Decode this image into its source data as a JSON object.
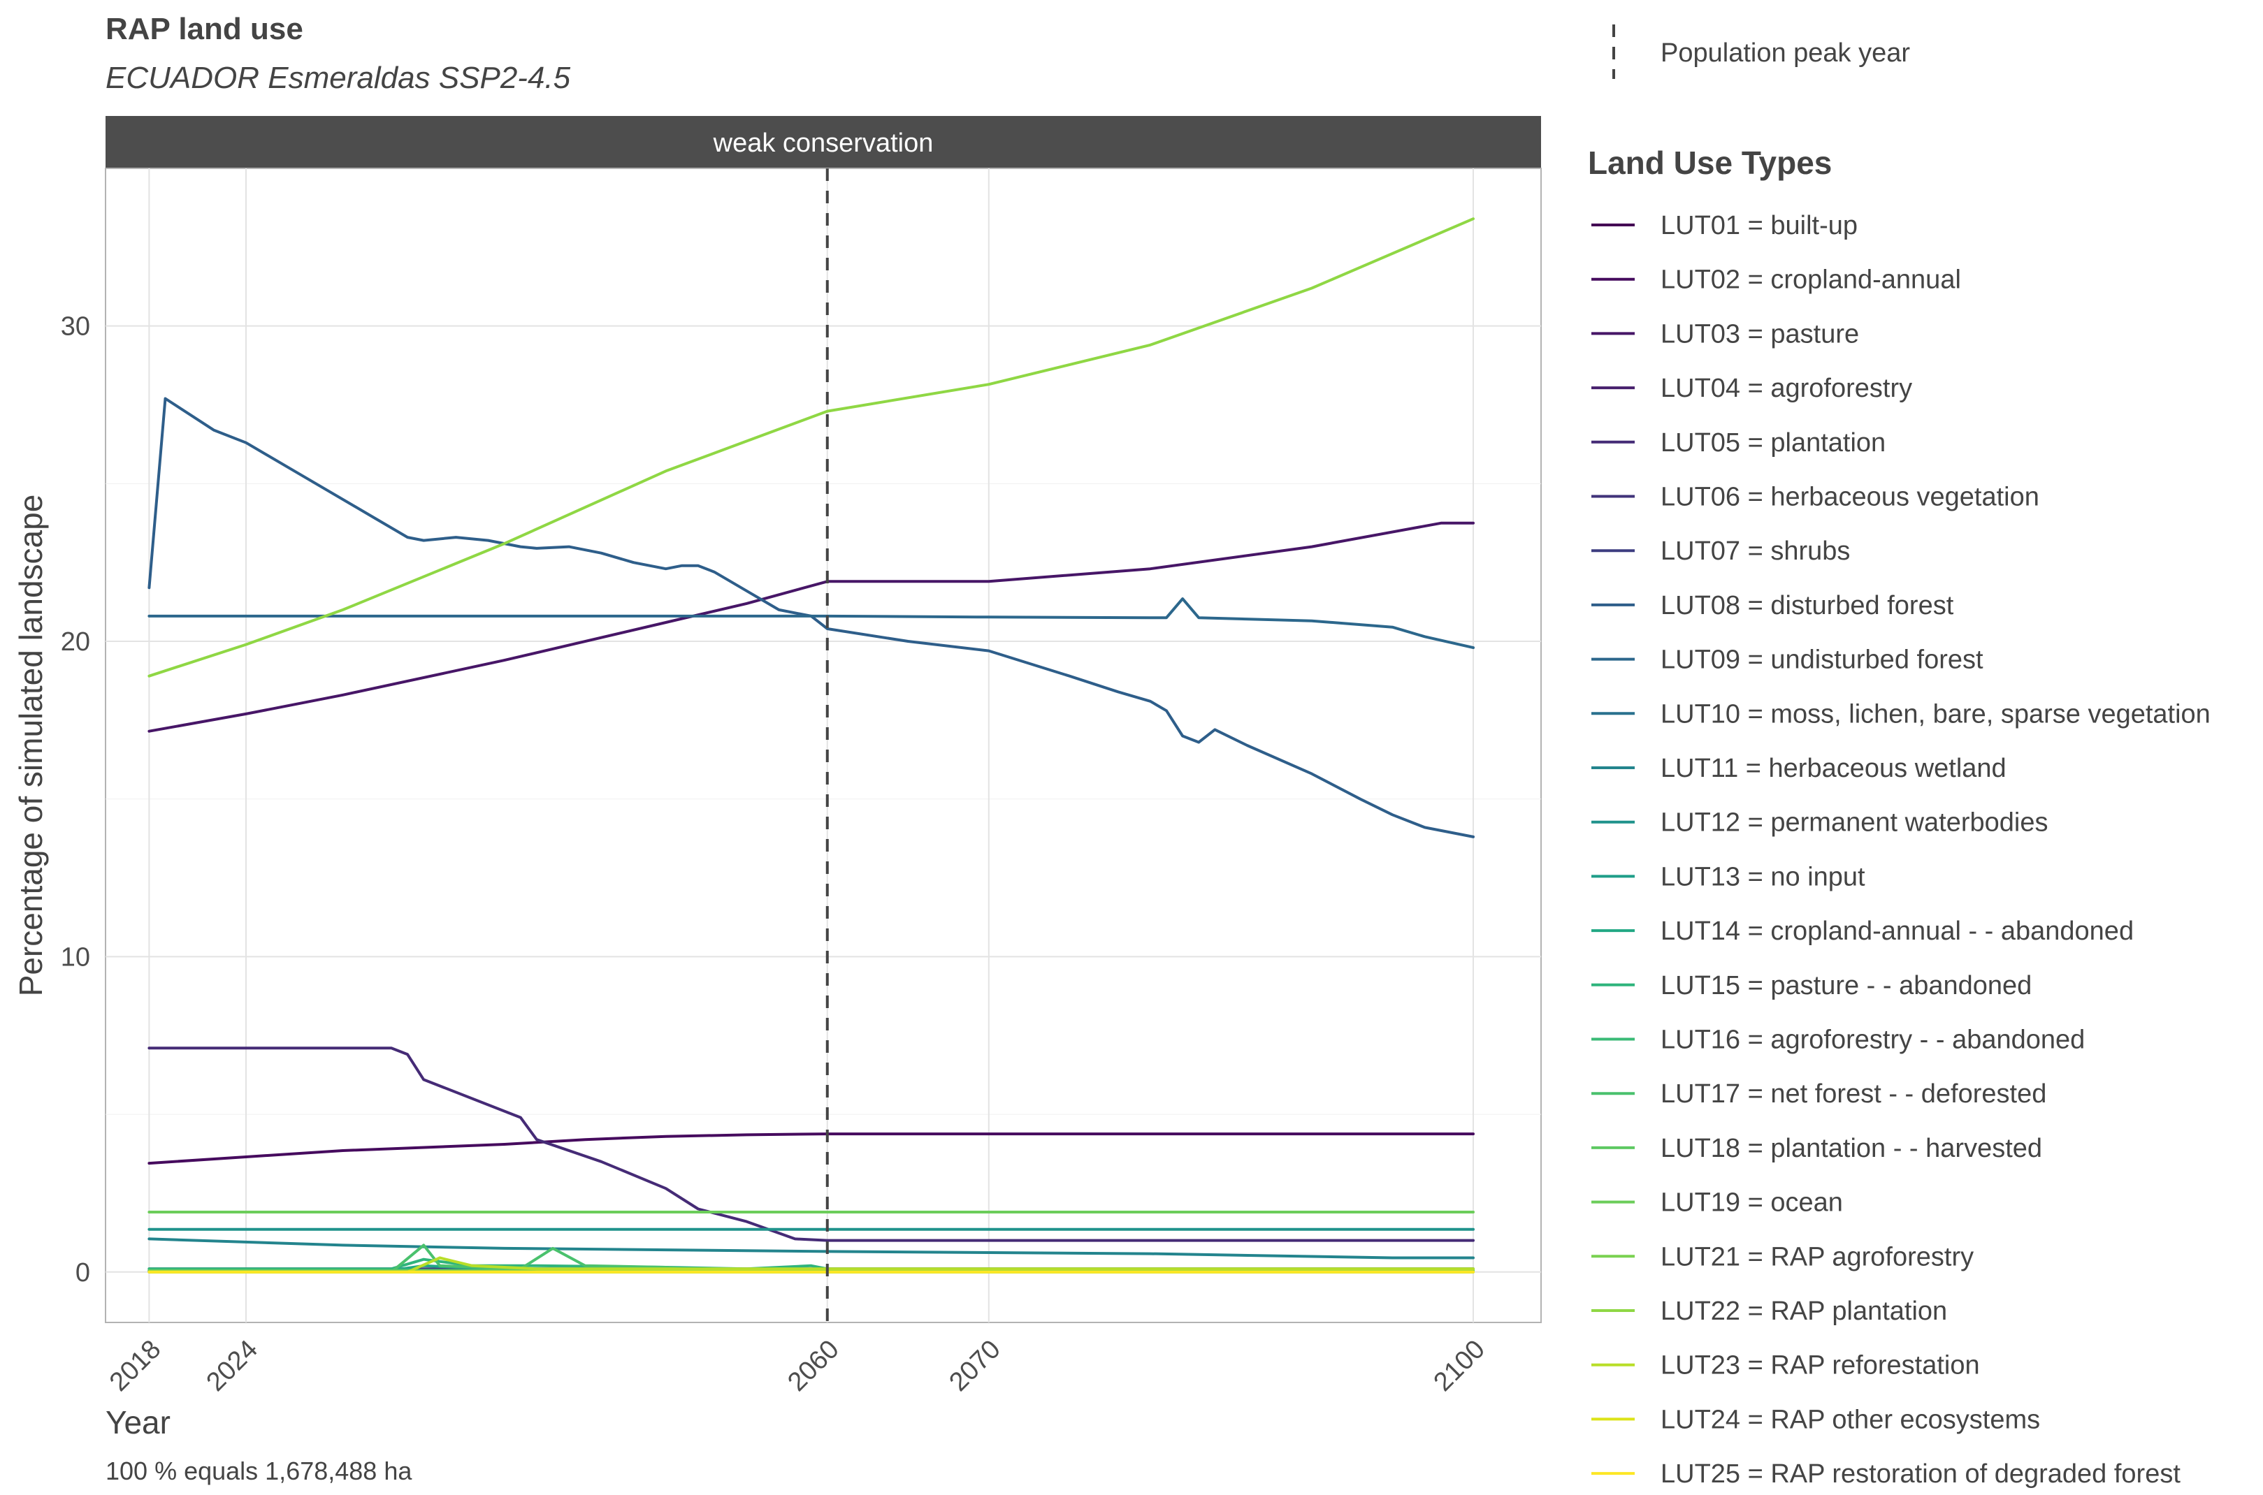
{
  "header": {
    "title": "RAP land use",
    "subtitle": "ECUADOR Esmeraldas SSP2-4.5"
  },
  "caption": "100 % equals 1,678,488 ha",
  "peak_legend": {
    "label": "Population peak year"
  },
  "chart_data": {
    "type": "line",
    "facet": "weak conservation",
    "xlabel": "Year",
    "ylabel": "Percentage of simulated landscape",
    "xlim": [
      2015.3,
      2104.2
    ],
    "ylim": [
      -1.6,
      35
    ],
    "x_ticks": [
      2018,
      2024,
      2060,
      2070,
      2100
    ],
    "y_ticks": [
      0,
      10,
      20,
      30
    ],
    "grid": true,
    "vline": {
      "x": 2060,
      "style": "dashed",
      "label": "Population peak year"
    },
    "legend_title": "Land Use Types",
    "legend_position": "right",
    "series": [
      {
        "name": "LUT01 = built-up",
        "color": "#440154",
        "points": [
          [
            2018,
            0.02
          ],
          [
            2100,
            0.05
          ]
        ]
      },
      {
        "name": "LUT02 = cropland-annual",
        "color": "#460B5E",
        "points": [
          [
            2018,
            3.45
          ],
          [
            2024,
            3.65
          ],
          [
            2030,
            3.85
          ],
          [
            2040,
            4.05
          ],
          [
            2045,
            4.2
          ],
          [
            2050,
            4.3
          ],
          [
            2055,
            4.35
          ],
          [
            2060,
            4.38
          ],
          [
            2070,
            4.38
          ],
          [
            2100,
            4.38
          ]
        ]
      },
      {
        "name": "LUT03 = pasture",
        "color": "#471667",
        "points": [
          [
            2018,
            17.15
          ],
          [
            2024,
            17.7
          ],
          [
            2030,
            18.3
          ],
          [
            2040,
            19.4
          ],
          [
            2050,
            20.6
          ],
          [
            2055,
            21.2
          ],
          [
            2060,
            21.9
          ],
          [
            2070,
            21.9
          ],
          [
            2080,
            22.3
          ],
          [
            2090,
            23.0
          ],
          [
            2098,
            23.75
          ],
          [
            2100,
            23.75
          ]
        ]
      },
      {
        "name": "LUT04 = agroforestry",
        "color": "#47206D",
        "points": [
          [
            2018,
            0.03
          ],
          [
            2100,
            0.03
          ]
        ]
      },
      {
        "name": "LUT05 = plantation",
        "color": "#452B76",
        "points": [
          [
            2018,
            7.1
          ],
          [
            2024,
            7.1
          ],
          [
            2030,
            7.1
          ],
          [
            2033,
            7.1
          ],
          [
            2034,
            6.9
          ],
          [
            2035,
            6.1
          ],
          [
            2041,
            4.9
          ],
          [
            2042,
            4.2
          ],
          [
            2046,
            3.5
          ],
          [
            2050,
            2.65
          ],
          [
            2052,
            2.0
          ],
          [
            2055,
            1.6
          ],
          [
            2058,
            1.05
          ],
          [
            2060,
            1.0
          ],
          [
            2100,
            1.0
          ]
        ]
      },
      {
        "name": "LUT06 = herbaceous vegetation",
        "color": "#41337A",
        "points": [
          [
            2018,
            0.05
          ],
          [
            2100,
            0.05
          ]
        ]
      },
      {
        "name": "LUT07 = shrubs",
        "color": "#3D3D80",
        "points": [
          [
            2018,
            0.1
          ],
          [
            2060,
            0.1
          ],
          [
            2100,
            0.1
          ]
        ]
      },
      {
        "name": "LUT08 = disturbed forest",
        "color": "#2E5E8A",
        "points": [
          [
            2018,
            21.7
          ],
          [
            2019,
            27.7
          ],
          [
            2022,
            26.7
          ],
          [
            2024,
            26.3
          ],
          [
            2027,
            25.4
          ],
          [
            2032,
            23.9
          ],
          [
            2034,
            23.3
          ],
          [
            2035,
            23.2
          ],
          [
            2037,
            23.3
          ],
          [
            2039,
            23.2
          ],
          [
            2041,
            23.0
          ],
          [
            2042,
            22.95
          ],
          [
            2044,
            23.0
          ],
          [
            2046,
            22.8
          ],
          [
            2048,
            22.5
          ],
          [
            2050,
            22.3
          ],
          [
            2051,
            22.4
          ],
          [
            2052,
            22.4
          ],
          [
            2053,
            22.2
          ],
          [
            2055,
            21.6
          ],
          [
            2057,
            21.0
          ],
          [
            2059,
            20.8
          ],
          [
            2060,
            20.4
          ],
          [
            2065,
            20.0
          ],
          [
            2070,
            19.7
          ],
          [
            2075,
            18.9
          ],
          [
            2078,
            18.4
          ],
          [
            2080,
            18.1
          ],
          [
            2081,
            17.8
          ],
          [
            2082,
            17.0
          ],
          [
            2083,
            16.8
          ],
          [
            2084,
            17.2
          ],
          [
            2086,
            16.7
          ],
          [
            2090,
            15.8
          ],
          [
            2093,
            15.0
          ],
          [
            2095,
            14.5
          ],
          [
            2097,
            14.1
          ],
          [
            2100,
            13.8
          ]
        ]
      },
      {
        "name": "LUT09 = undisturbed forest",
        "color": "#2C678C",
        "points": [
          [
            2018,
            20.8
          ],
          [
            2030,
            20.8
          ],
          [
            2060,
            20.8
          ],
          [
            2070,
            20.77
          ],
          [
            2080,
            20.75
          ],
          [
            2081,
            20.75
          ],
          [
            2082,
            21.35
          ],
          [
            2083,
            20.75
          ],
          [
            2090,
            20.65
          ],
          [
            2095,
            20.45
          ],
          [
            2097,
            20.15
          ],
          [
            2100,
            19.8
          ]
        ]
      },
      {
        "name": "LUT10 = moss, lichen, bare, sparse vegetation",
        "color": "#29718E",
        "points": [
          [
            2018,
            0.02
          ],
          [
            2100,
            0.02
          ]
        ]
      },
      {
        "name": "LUT11 = herbaceous wetland",
        "color": "#23848D",
        "points": [
          [
            2018,
            1.05
          ],
          [
            2030,
            0.85
          ],
          [
            2040,
            0.75
          ],
          [
            2060,
            0.65
          ],
          [
            2080,
            0.58
          ],
          [
            2095,
            0.45
          ],
          [
            2100,
            0.45
          ]
        ]
      },
      {
        "name": "LUT12 = permanent waterbodies",
        "color": "#20938C",
        "points": [
          [
            2018,
            1.35
          ],
          [
            2100,
            1.35
          ]
        ]
      },
      {
        "name": "LUT13 = no input",
        "color": "#1F9E89",
        "points": [
          [
            2018,
            0.0
          ],
          [
            2100,
            0.0
          ]
        ]
      },
      {
        "name": "LUT14 = cropland-annual - - abandoned",
        "color": "#22A884",
        "points": [
          [
            2018,
            0.05
          ],
          [
            2033,
            0.05
          ],
          [
            2035,
            0.2
          ],
          [
            2037,
            0.15
          ],
          [
            2042,
            0.1
          ],
          [
            2060,
            0.05
          ],
          [
            2100,
            0.05
          ]
        ]
      },
      {
        "name": "LUT15 = pasture - - abandoned",
        "color": "#2FB47C",
        "points": [
          [
            2018,
            0.1
          ],
          [
            2033,
            0.1
          ],
          [
            2035,
            0.4
          ],
          [
            2038,
            0.2
          ],
          [
            2042,
            0.2
          ],
          [
            2050,
            0.15
          ],
          [
            2055,
            0.1
          ],
          [
            2059,
            0.2
          ],
          [
            2060,
            0.1
          ],
          [
            2100,
            0.1
          ]
        ]
      },
      {
        "name": "LUT16 = agroforestry - - abandoned",
        "color": "#3ABA76",
        "points": [
          [
            2018,
            0.05
          ],
          [
            2100,
            0.05
          ]
        ]
      },
      {
        "name": "LUT17 = net forest - - deforested",
        "color": "#4AC16D",
        "points": [
          [
            2018,
            0.0
          ],
          [
            2033,
            0.0
          ],
          [
            2035,
            0.85
          ],
          [
            2036,
            0.2
          ],
          [
            2041,
            0.1
          ],
          [
            2043,
            0.75
          ],
          [
            2045,
            0.2
          ],
          [
            2050,
            0.15
          ],
          [
            2052,
            0.05
          ],
          [
            2100,
            0.05
          ]
        ]
      },
      {
        "name": "LUT18 = plantation - - harvested",
        "color": "#5EC962",
        "points": [
          [
            2018,
            0.05
          ],
          [
            2100,
            0.05
          ]
        ]
      },
      {
        "name": "LUT19 = ocean",
        "color": "#6CCD5A",
        "points": [
          [
            2018,
            1.9
          ],
          [
            2100,
            1.9
          ]
        ]
      },
      {
        "name": "LUT21 = RAP agroforestry",
        "color": "#7AD151",
        "points": [
          [
            2018,
            0.0
          ],
          [
            2100,
            0.0
          ]
        ]
      },
      {
        "name": "LUT22 = RAP plantation",
        "color": "#8FD744",
        "points": [
          [
            2018,
            18.9
          ],
          [
            2024,
            19.9
          ],
          [
            2030,
            21.0
          ],
          [
            2040,
            23.1
          ],
          [
            2050,
            25.4
          ],
          [
            2060,
            27.3
          ],
          [
            2070,
            28.15
          ],
          [
            2080,
            29.4
          ],
          [
            2090,
            31.2
          ],
          [
            2100,
            33.4
          ]
        ]
      },
      {
        "name": "LUT23 = RAP reforestation",
        "color": "#B8DE29",
        "points": [
          [
            2018,
            0.0
          ],
          [
            2034,
            0.0
          ],
          [
            2036,
            0.45
          ],
          [
            2038,
            0.2
          ],
          [
            2042,
            0.1
          ],
          [
            2100,
            0.1
          ]
        ]
      },
      {
        "name": "LUT24 = RAP other ecosystems",
        "color": "#DCE318",
        "points": [
          [
            2018,
            0.0
          ],
          [
            2100,
            0.0
          ]
        ]
      },
      {
        "name": "LUT25 = RAP restoration of degraded forest",
        "color": "#FDE725",
        "points": [
          [
            2018,
            0.0
          ],
          [
            2100,
            0.0
          ]
        ]
      }
    ]
  }
}
